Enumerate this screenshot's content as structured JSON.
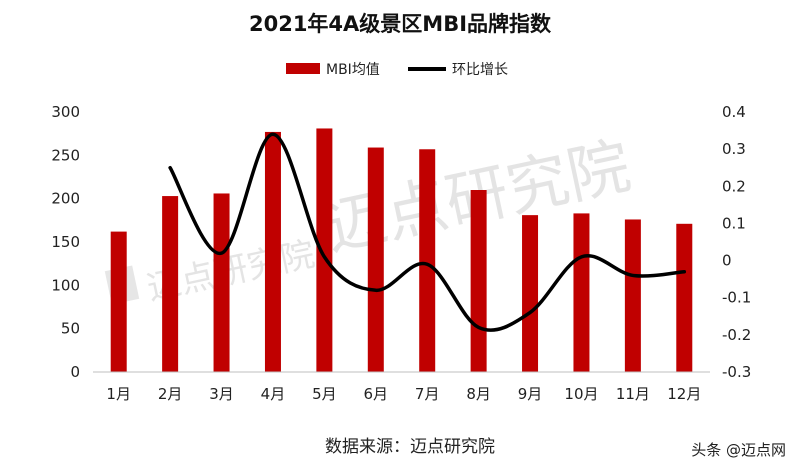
{
  "chart_data": {
    "type": "bar+line",
    "title": "2021年4A级景区MBI品牌指数",
    "categories": [
      "1月",
      "2月",
      "3月",
      "4月",
      "5月",
      "6月",
      "7月",
      "8月",
      "9月",
      "10月",
      "11月",
      "12月"
    ],
    "series": [
      {
        "name": "MBI均值",
        "type": "bar",
        "axis": "left",
        "values": [
          162,
          203,
          206,
          277,
          281,
          259,
          257,
          210,
          181,
          183,
          176,
          171
        ]
      },
      {
        "name": "环比增长",
        "type": "line",
        "axis": "right",
        "values": [
          null,
          0.25,
          0.02,
          0.34,
          0.01,
          -0.08,
          -0.01,
          -0.18,
          -0.14,
          0.01,
          -0.04,
          -0.03
        ]
      }
    ],
    "y_left": {
      "min": 0,
      "max": 300,
      "ticks": [
        "0",
        "50",
        "100",
        "150",
        "200",
        "250",
        "300"
      ]
    },
    "y_right": {
      "min": -0.3,
      "max": 0.4,
      "ticks": [
        "-0.3",
        "-0.2",
        "-0.1",
        "0",
        "0.1",
        "0.2",
        "0.3",
        "0.4"
      ]
    },
    "legend_position": "top-center",
    "grid": false,
    "colors": {
      "bar": "#c00000",
      "line": "#000000"
    }
  },
  "source": "数据来源：迈点研究院",
  "watermark_text": "迈点研究院",
  "brand": "头条 @迈点网"
}
